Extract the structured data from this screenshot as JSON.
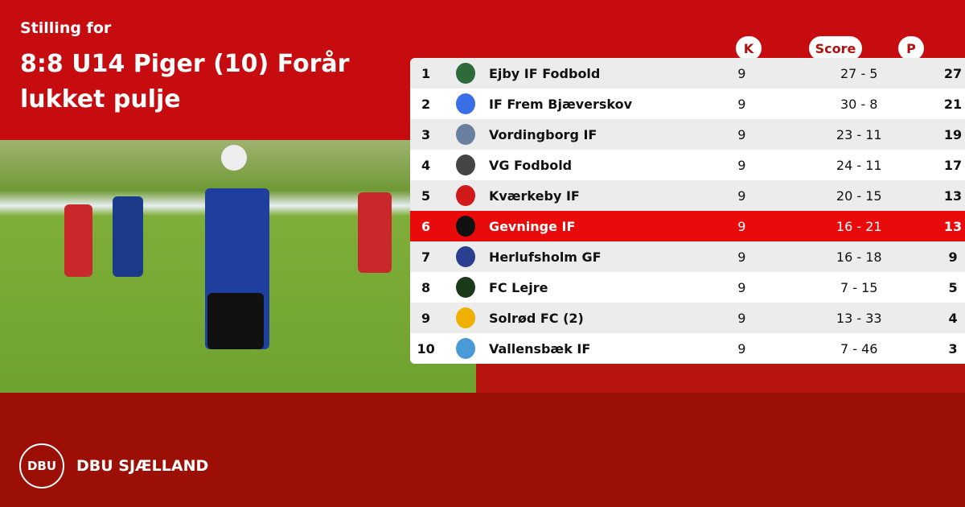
{
  "header": {
    "subtitle": "Stilling for",
    "title": "8:8 U14 Piger (10) Forår lukket pulje"
  },
  "columns": {
    "k": "K",
    "score": "Score",
    "p": "P"
  },
  "rows": [
    {
      "pos": "1",
      "team": "Ejby IF Fodbold",
      "k": "9",
      "score": "27 - 5",
      "p": "27",
      "logo_color": "#2e6b3a"
    },
    {
      "pos": "2",
      "team": "IF Frem Bjæverskov",
      "k": "9",
      "score": "30 - 8",
      "p": "21",
      "logo_color": "#3a6ee8"
    },
    {
      "pos": "3",
      "team": "Vordingborg IF",
      "k": "9",
      "score": "23 - 11",
      "p": "19",
      "logo_color": "#6a7fa0"
    },
    {
      "pos": "4",
      "team": "VG Fodbold",
      "k": "9",
      "score": "24 - 11",
      "p": "17",
      "logo_color": "#444444"
    },
    {
      "pos": "5",
      "team": "Kværkeby IF",
      "k": "9",
      "score": "20 - 15",
      "p": "13",
      "logo_color": "#d21a1a"
    },
    {
      "pos": "6",
      "team": "Gevninge IF",
      "k": "9",
      "score": "16 - 21",
      "p": "13",
      "logo_color": "#111111",
      "highlight": true
    },
    {
      "pos": "7",
      "team": "Herlufsholm GF",
      "k": "9",
      "score": "16 - 18",
      "p": "9",
      "logo_color": "#2a3f8f"
    },
    {
      "pos": "8",
      "team": "FC Lejre",
      "k": "9",
      "score": "7 - 15",
      "p": "5",
      "logo_color": "#1a3a1a"
    },
    {
      "pos": "9",
      "team": "Solrød FC (2)",
      "k": "9",
      "score": "13 - 33",
      "p": "4",
      "logo_color": "#f0b000"
    },
    {
      "pos": "10",
      "team": "Vallensbæk IF",
      "k": "9",
      "score": "7 - 46",
      "p": "3",
      "logo_color": "#4a9ad8"
    }
  ],
  "footer": {
    "brand": "DBU SJÆLLAND",
    "logo_text": "DBU"
  },
  "colors": {
    "top": "#c60c0e",
    "bottom": "#9c0f06",
    "highlight": "#e90b0b"
  }
}
